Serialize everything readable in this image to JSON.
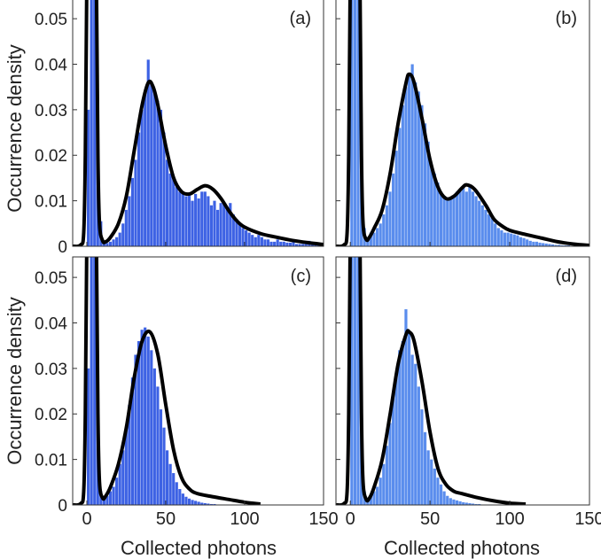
{
  "chart_data": {
    "type": "bar",
    "ylabel": "Occurrence density",
    "xlabel": "Collected photons",
    "xlim": [
      -9,
      150
    ],
    "ylim": [
      0,
      0.0545
    ],
    "yticks": [
      "0",
      "0.01",
      "0.02",
      "0.03",
      "0.04",
      "0.05"
    ],
    "ytick_values": [
      0,
      0.01,
      0.02,
      0.03,
      0.04,
      0.05
    ],
    "xticks": [
      "0",
      "50",
      "100",
      "150"
    ],
    "xtick_values": [
      0,
      50,
      100,
      150
    ],
    "bin_width": 2,
    "bin_start": 0,
    "panels": [
      {
        "label": "(a)",
        "color": "#3d62e4",
        "hist": [
          0.03,
          0.2,
          0.1,
          0.02,
          0.0055,
          0.0008,
          0.0007,
          0.001,
          0.0015,
          0.002,
          0.003,
          0.005,
          0.008,
          0.011,
          0.015,
          0.019,
          0.025,
          0.03,
          0.034,
          0.041,
          0.036,
          0.034,
          0.032,
          0.03,
          0.025,
          0.019,
          0.016,
          0.015,
          0.013,
          0.012,
          0.012,
          0.011,
          0.0115,
          0.01,
          0.0115,
          0.0105,
          0.012,
          0.012,
          0.011,
          0.009,
          0.01,
          0.008,
          0.0095,
          0.0095,
          0.0085,
          0.0095,
          0.007,
          0.006,
          0.005,
          0.004,
          0.0035,
          0.003,
          0.0025,
          0.002,
          0.0025,
          0.002,
          0.0015,
          0.0015,
          0.001,
          0.001,
          0.0015,
          0.001,
          0.001,
          0.0008,
          0.0008,
          0.0012,
          0.0005,
          0.0005,
          0.0005,
          0.0005,
          0.0012,
          0.0003,
          0.0003,
          0.0003
        ],
        "fit_x": [
          -9,
          -4,
          -2,
          -1,
          0,
          1,
          2,
          4,
          5,
          6,
          7,
          8,
          10,
          12,
          15,
          20,
          25,
          30,
          35,
          39,
          42,
          45,
          50,
          55,
          60,
          65,
          70,
          75,
          80,
          85,
          90,
          95,
          100,
          110,
          120,
          130,
          140,
          150
        ],
        "fit_y": [
          0,
          0.0003,
          0.003,
          0.02,
          0.06,
          0.12,
          0.2,
          0.2,
          0.12,
          0.06,
          0.02,
          0.005,
          0.0012,
          0.001,
          0.002,
          0.005,
          0.011,
          0.021,
          0.031,
          0.036,
          0.035,
          0.031,
          0.022,
          0.015,
          0.012,
          0.0115,
          0.0125,
          0.0133,
          0.0125,
          0.0105,
          0.0078,
          0.0056,
          0.0042,
          0.0028,
          0.002,
          0.0013,
          0.0008,
          0.0004
        ]
      },
      {
        "label": "(b)",
        "color": "#5a8ded",
        "hist": [
          0.06,
          0.2,
          0.1,
          0.02,
          0.004,
          0.002,
          0.003,
          0.003,
          0.004,
          0.005,
          0.007,
          0.009,
          0.012,
          0.016,
          0.021,
          0.026,
          0.031,
          0.035,
          0.038,
          0.04,
          0.036,
          0.034,
          0.031,
          0.027,
          0.023,
          0.018,
          0.016,
          0.014,
          0.012,
          0.011,
          0.0105,
          0.0105,
          0.011,
          0.012,
          0.0125,
          0.013,
          0.012,
          0.0135,
          0.012,
          0.011,
          0.01,
          0.009,
          0.008,
          0.007,
          0.0065,
          0.005,
          0.004,
          0.0035,
          0.003,
          0.003,
          0.0028,
          0.0026,
          0.0024,
          0.002,
          0.0018,
          0.0015,
          0.0012,
          0.001,
          0.001,
          0.0008,
          0.0007,
          0.0006,
          0.0005,
          0.0004,
          0.0003,
          0.0003,
          0.0002,
          0.0002,
          0.0002,
          0.0001,
          0.0001,
          0.0001,
          0.0001,
          0.0001
        ],
        "fit_x": [
          -9,
          -4,
          -2,
          -1,
          0,
          1,
          2,
          4,
          5,
          6,
          7,
          8,
          10,
          12,
          15,
          20,
          25,
          30,
          35,
          37,
          40,
          45,
          50,
          55,
          60,
          65,
          70,
          73,
          78,
          85,
          90,
          95,
          100,
          110,
          120,
          130,
          140,
          150
        ],
        "fit_y": [
          0,
          0.0003,
          0.003,
          0.02,
          0.06,
          0.12,
          0.2,
          0.2,
          0.12,
          0.06,
          0.02,
          0.005,
          0.0015,
          0.002,
          0.004,
          0.008,
          0.016,
          0.027,
          0.036,
          0.0378,
          0.036,
          0.028,
          0.019,
          0.013,
          0.0105,
          0.011,
          0.0128,
          0.0135,
          0.0125,
          0.009,
          0.006,
          0.0045,
          0.0035,
          0.0026,
          0.0018,
          0.001,
          0.0005,
          0.0002
        ]
      },
      {
        "label": "(c)",
        "color": "#3d62e4",
        "hist": [
          0.03,
          0.2,
          0.1,
          0.02,
          0.003,
          0.0015,
          0.002,
          0.003,
          0.004,
          0.006,
          0.009,
          0.012,
          0.017,
          0.022,
          0.028,
          0.033,
          0.036,
          0.0385,
          0.039,
          0.037,
          0.034,
          0.03,
          0.026,
          0.021,
          0.017,
          0.012,
          0.009,
          0.007,
          0.005,
          0.0035,
          0.0025,
          0.0018,
          0.0014,
          0.0011,
          0.0009,
          0.0007,
          0.0005,
          0.0004,
          0.0003,
          0.0002,
          0.0002,
          0.0001,
          0.0001,
          0.0001,
          0.0001
        ],
        "fit_x": [
          -9,
          -4,
          -2,
          -1,
          0,
          1,
          2,
          4,
          5,
          6,
          7,
          8,
          10,
          12,
          15,
          20,
          25,
          30,
          35,
          40,
          45,
          50,
          55,
          60,
          65,
          70,
          80,
          90,
          100,
          110
        ],
        "fit_y": [
          0,
          0.0003,
          0.003,
          0.02,
          0.06,
          0.12,
          0.2,
          0.2,
          0.12,
          0.06,
          0.02,
          0.005,
          0.0015,
          0.002,
          0.004,
          0.009,
          0.017,
          0.028,
          0.036,
          0.038,
          0.033,
          0.022,
          0.012,
          0.006,
          0.0035,
          0.0025,
          0.0018,
          0.0012,
          0.0006,
          0.0002
        ]
      },
      {
        "label": "(d)",
        "color": "#5a8ded",
        "hist": [
          0.2,
          0.2,
          0.1,
          0.02,
          0.003,
          0.0015,
          0.002,
          0.003,
          0.004,
          0.006,
          0.009,
          0.013,
          0.018,
          0.024,
          0.029,
          0.034,
          0.036,
          0.043,
          0.038,
          0.033,
          0.031,
          0.026,
          0.021,
          0.016,
          0.012,
          0.01,
          0.008,
          0.006,
          0.0045,
          0.003,
          0.002,
          0.0015,
          0.0012,
          0.001,
          0.0008,
          0.0006,
          0.0005,
          0.0004,
          0.0003,
          0.0002,
          0.0002,
          0.0001,
          0.0001,
          0.0001,
          0.0001
        ],
        "fit_x": [
          -9,
          -4,
          -2,
          -1,
          0,
          1,
          2,
          4,
          5,
          6,
          7,
          8,
          10,
          12,
          15,
          20,
          25,
          30,
          35,
          37,
          40,
          45,
          50,
          55,
          60,
          65,
          70,
          80,
          90,
          100,
          110
        ],
        "fit_y": [
          0,
          0.0003,
          0.003,
          0.02,
          0.06,
          0.12,
          0.2,
          0.2,
          0.12,
          0.06,
          0.02,
          0.005,
          0.0012,
          0.0015,
          0.004,
          0.01,
          0.02,
          0.031,
          0.0375,
          0.038,
          0.036,
          0.027,
          0.016,
          0.008,
          0.0045,
          0.003,
          0.0025,
          0.0016,
          0.0009,
          0.0004,
          0.0002
        ]
      }
    ]
  }
}
